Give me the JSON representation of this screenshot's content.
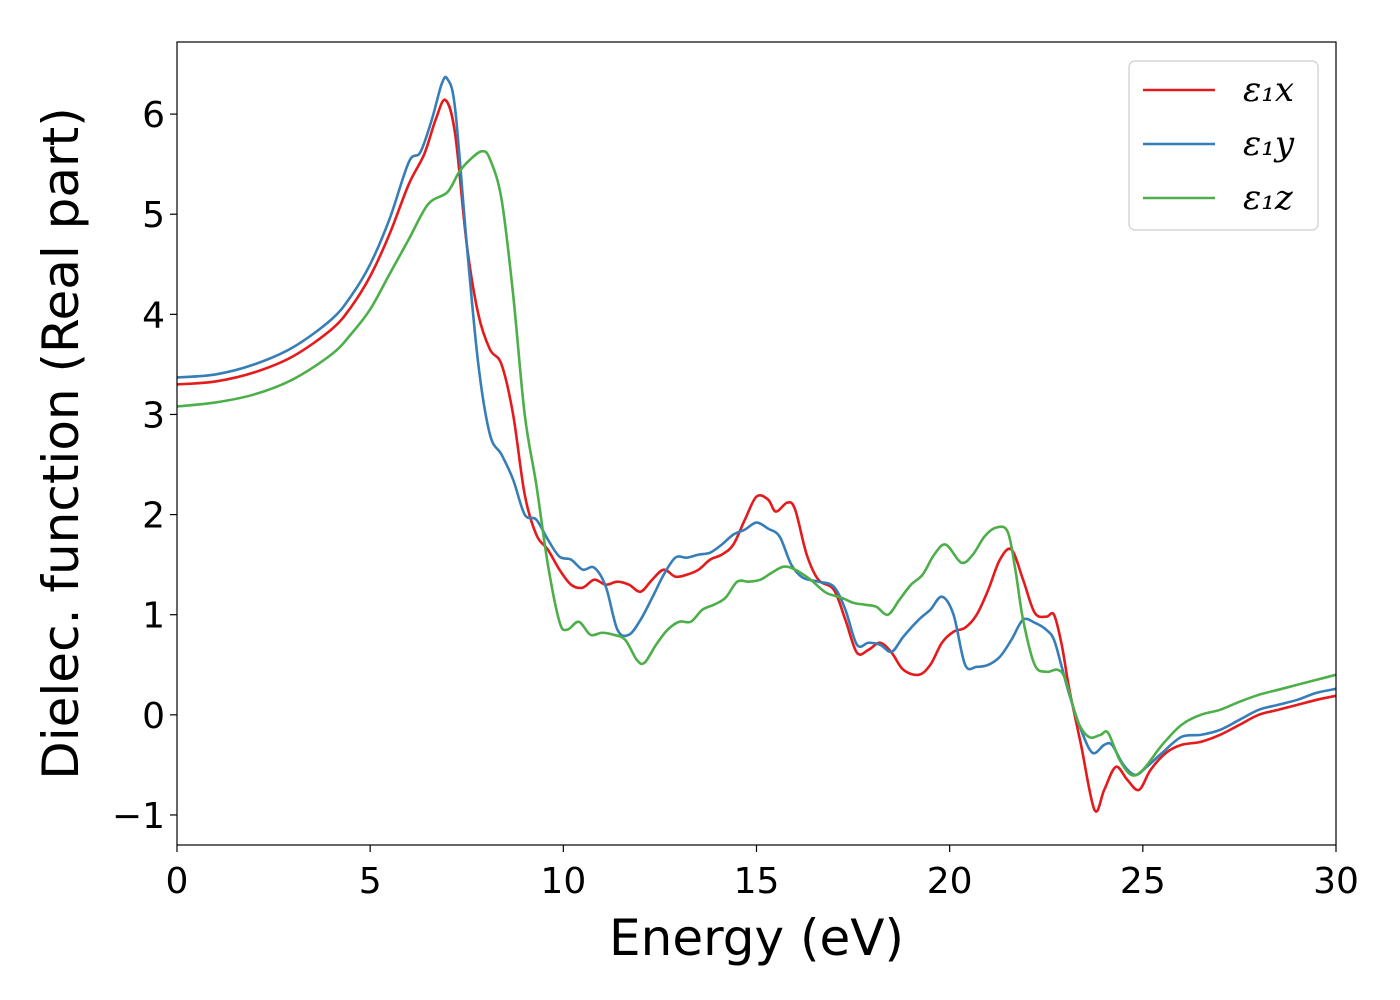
{
  "chart_data": {
    "type": "line",
    "xlabel": "Energy (eV)",
    "ylabel": "Dielec. function (Real part)",
    "xlim": [
      0,
      30
    ],
    "ylim": [
      -1.3,
      6.72
    ],
    "xticks": [
      0,
      5,
      10,
      15,
      20,
      25,
      30
    ],
    "xtick_labels": [
      "0",
      "5",
      "10",
      "15",
      "20",
      "25",
      "30"
    ],
    "yticks": [
      -1,
      0,
      1,
      2,
      3,
      4,
      5,
      6
    ],
    "ytick_labels": [
      "−1",
      "0",
      "1",
      "2",
      "3",
      "4",
      "5",
      "6"
    ],
    "grid": false,
    "legend_position": "top-right",
    "series": [
      {
        "name": "ε₁x",
        "color": "#e41a1c",
        "points": [
          [
            0,
            3.3
          ],
          [
            1,
            3.33
          ],
          [
            2,
            3.42
          ],
          [
            3,
            3.58
          ],
          [
            4,
            3.85
          ],
          [
            4.5,
            4.07
          ],
          [
            5,
            4.38
          ],
          [
            5.5,
            4.8
          ],
          [
            6,
            5.3
          ],
          [
            6.4,
            5.6
          ],
          [
            6.7,
            5.95
          ],
          [
            6.95,
            6.14
          ],
          [
            7.2,
            5.8
          ],
          [
            7.5,
            4.7
          ],
          [
            7.8,
            4.0
          ],
          [
            8.1,
            3.65
          ],
          [
            8.4,
            3.5
          ],
          [
            8.7,
            3.0
          ],
          [
            9.0,
            2.2
          ],
          [
            9.3,
            1.8
          ],
          [
            9.6,
            1.65
          ],
          [
            9.9,
            1.45
          ],
          [
            10.2,
            1.3
          ],
          [
            10.5,
            1.27
          ],
          [
            10.8,
            1.35
          ],
          [
            11.1,
            1.3
          ],
          [
            11.4,
            1.33
          ],
          [
            11.7,
            1.3
          ],
          [
            12.0,
            1.23
          ],
          [
            12.3,
            1.35
          ],
          [
            12.6,
            1.45
          ],
          [
            12.9,
            1.38
          ],
          [
            13.2,
            1.4
          ],
          [
            13.5,
            1.45
          ],
          [
            13.8,
            1.55
          ],
          [
            14.1,
            1.6
          ],
          [
            14.4,
            1.7
          ],
          [
            14.7,
            1.95
          ],
          [
            15.0,
            2.18
          ],
          [
            15.3,
            2.15
          ],
          [
            15.5,
            2.03
          ],
          [
            15.8,
            2.12
          ],
          [
            16.0,
            2.05
          ],
          [
            16.3,
            1.6
          ],
          [
            16.6,
            1.35
          ],
          [
            17.0,
            1.25
          ],
          [
            17.3,
            0.95
          ],
          [
            17.6,
            0.62
          ],
          [
            17.9,
            0.65
          ],
          [
            18.2,
            0.72
          ],
          [
            18.5,
            0.62
          ],
          [
            18.8,
            0.45
          ],
          [
            19.2,
            0.4
          ],
          [
            19.5,
            0.5
          ],
          [
            19.8,
            0.72
          ],
          [
            20.1,
            0.83
          ],
          [
            20.4,
            0.87
          ],
          [
            20.7,
            1.0
          ],
          [
            21.0,
            1.25
          ],
          [
            21.3,
            1.55
          ],
          [
            21.6,
            1.65
          ],
          [
            21.9,
            1.35
          ],
          [
            22.2,
            1.02
          ],
          [
            22.5,
            0.98
          ],
          [
            22.7,
            1.0
          ],
          [
            22.9,
            0.7
          ],
          [
            23.1,
            0.25
          ],
          [
            23.4,
            -0.3
          ],
          [
            23.75,
            -0.95
          ],
          [
            24.0,
            -0.75
          ],
          [
            24.3,
            -0.52
          ],
          [
            24.6,
            -0.65
          ],
          [
            24.9,
            -0.75
          ],
          [
            25.2,
            -0.55
          ],
          [
            25.6,
            -0.38
          ],
          [
            26.0,
            -0.3
          ],
          [
            26.5,
            -0.27
          ],
          [
            27.0,
            -0.2
          ],
          [
            27.5,
            -0.1
          ],
          [
            28.0,
            0.0
          ],
          [
            28.5,
            0.05
          ],
          [
            29.0,
            0.1
          ],
          [
            29.5,
            0.15
          ],
          [
            30.0,
            0.19
          ]
        ]
      },
      {
        "name": "ε₁y",
        "color": "#377eb8",
        "points": [
          [
            0,
            3.37
          ],
          [
            1,
            3.4
          ],
          [
            2,
            3.5
          ],
          [
            3,
            3.67
          ],
          [
            4,
            3.95
          ],
          [
            4.5,
            4.18
          ],
          [
            5,
            4.5
          ],
          [
            5.5,
            4.95
          ],
          [
            6,
            5.52
          ],
          [
            6.3,
            5.62
          ],
          [
            6.6,
            5.95
          ],
          [
            6.85,
            6.3
          ],
          [
            7.0,
            6.35
          ],
          [
            7.2,
            6.05
          ],
          [
            7.5,
            4.7
          ],
          [
            7.8,
            3.5
          ],
          [
            8.1,
            2.8
          ],
          [
            8.4,
            2.6
          ],
          [
            8.7,
            2.35
          ],
          [
            9.0,
            2.0
          ],
          [
            9.3,
            1.95
          ],
          [
            9.6,
            1.75
          ],
          [
            9.9,
            1.58
          ],
          [
            10.2,
            1.55
          ],
          [
            10.5,
            1.45
          ],
          [
            10.8,
            1.47
          ],
          [
            11.1,
            1.28
          ],
          [
            11.4,
            0.85
          ],
          [
            11.7,
            0.8
          ],
          [
            12.0,
            0.95
          ],
          [
            12.3,
            1.17
          ],
          [
            12.6,
            1.4
          ],
          [
            12.9,
            1.57
          ],
          [
            13.2,
            1.57
          ],
          [
            13.5,
            1.6
          ],
          [
            13.8,
            1.62
          ],
          [
            14.1,
            1.7
          ],
          [
            14.4,
            1.8
          ],
          [
            14.7,
            1.85
          ],
          [
            15.0,
            1.92
          ],
          [
            15.3,
            1.86
          ],
          [
            15.6,
            1.78
          ],
          [
            15.9,
            1.5
          ],
          [
            16.2,
            1.37
          ],
          [
            16.6,
            1.33
          ],
          [
            17.0,
            1.28
          ],
          [
            17.3,
            1.05
          ],
          [
            17.6,
            0.7
          ],
          [
            17.9,
            0.72
          ],
          [
            18.2,
            0.7
          ],
          [
            18.5,
            0.63
          ],
          [
            18.8,
            0.78
          ],
          [
            19.2,
            0.95
          ],
          [
            19.5,
            1.05
          ],
          [
            19.8,
            1.18
          ],
          [
            20.1,
            1.0
          ],
          [
            20.4,
            0.5
          ],
          [
            20.7,
            0.48
          ],
          [
            21.0,
            0.5
          ],
          [
            21.3,
            0.58
          ],
          [
            21.6,
            0.75
          ],
          [
            21.9,
            0.95
          ],
          [
            22.2,
            0.92
          ],
          [
            22.5,
            0.85
          ],
          [
            22.7,
            0.75
          ],
          [
            22.9,
            0.48
          ],
          [
            23.1,
            0.2
          ],
          [
            23.4,
            -0.15
          ],
          [
            23.7,
            -0.38
          ],
          [
            24.0,
            -0.3
          ],
          [
            24.2,
            -0.3
          ],
          [
            24.5,
            -0.5
          ],
          [
            24.8,
            -0.6
          ],
          [
            25.1,
            -0.52
          ],
          [
            25.5,
            -0.38
          ],
          [
            26.0,
            -0.22
          ],
          [
            26.5,
            -0.2
          ],
          [
            27.0,
            -0.15
          ],
          [
            27.5,
            -0.05
          ],
          [
            28.0,
            0.05
          ],
          [
            28.5,
            0.1
          ],
          [
            29.0,
            0.15
          ],
          [
            29.5,
            0.22
          ],
          [
            30.0,
            0.26
          ]
        ]
      },
      {
        "name": "ε₁z",
        "color": "#4daf4a",
        "points": [
          [
            0,
            3.08
          ],
          [
            1,
            3.12
          ],
          [
            2,
            3.2
          ],
          [
            3,
            3.35
          ],
          [
            4,
            3.6
          ],
          [
            4.5,
            3.8
          ],
          [
            5,
            4.05
          ],
          [
            5.5,
            4.4
          ],
          [
            6,
            4.75
          ],
          [
            6.5,
            5.1
          ],
          [
            7.0,
            5.22
          ],
          [
            7.3,
            5.42
          ],
          [
            7.6,
            5.55
          ],
          [
            7.9,
            5.63
          ],
          [
            8.1,
            5.55
          ],
          [
            8.4,
            5.15
          ],
          [
            8.7,
            4.2
          ],
          [
            9.0,
            3.0
          ],
          [
            9.3,
            2.3
          ],
          [
            9.6,
            1.5
          ],
          [
            9.9,
            0.93
          ],
          [
            10.1,
            0.85
          ],
          [
            10.4,
            0.93
          ],
          [
            10.7,
            0.8
          ],
          [
            11.0,
            0.82
          ],
          [
            11.3,
            0.8
          ],
          [
            11.6,
            0.75
          ],
          [
            11.9,
            0.55
          ],
          [
            12.1,
            0.52
          ],
          [
            12.4,
            0.7
          ],
          [
            12.7,
            0.85
          ],
          [
            13.0,
            0.93
          ],
          [
            13.3,
            0.93
          ],
          [
            13.6,
            1.05
          ],
          [
            13.9,
            1.1
          ],
          [
            14.2,
            1.17
          ],
          [
            14.5,
            1.33
          ],
          [
            14.8,
            1.33
          ],
          [
            15.1,
            1.35
          ],
          [
            15.4,
            1.42
          ],
          [
            15.7,
            1.48
          ],
          [
            16.0,
            1.45
          ],
          [
            16.4,
            1.35
          ],
          [
            16.8,
            1.22
          ],
          [
            17.2,
            1.17
          ],
          [
            17.5,
            1.12
          ],
          [
            17.8,
            1.1
          ],
          [
            18.1,
            1.08
          ],
          [
            18.4,
            1.0
          ],
          [
            18.7,
            1.15
          ],
          [
            19.0,
            1.3
          ],
          [
            19.3,
            1.4
          ],
          [
            19.6,
            1.6
          ],
          [
            19.9,
            1.7
          ],
          [
            20.3,
            1.52
          ],
          [
            20.6,
            1.6
          ],
          [
            20.9,
            1.78
          ],
          [
            21.2,
            1.87
          ],
          [
            21.5,
            1.83
          ],
          [
            21.7,
            1.45
          ],
          [
            21.9,
            0.95
          ],
          [
            22.2,
            0.5
          ],
          [
            22.5,
            0.43
          ],
          [
            22.8,
            0.45
          ],
          [
            23.0,
            0.35
          ],
          [
            23.3,
            -0.05
          ],
          [
            23.6,
            -0.22
          ],
          [
            23.9,
            -0.2
          ],
          [
            24.1,
            -0.18
          ],
          [
            24.4,
            -0.45
          ],
          [
            24.7,
            -0.6
          ],
          [
            25.0,
            -0.55
          ],
          [
            25.5,
            -0.3
          ],
          [
            26.0,
            -0.1
          ],
          [
            26.5,
            0.0
          ],
          [
            27.0,
            0.05
          ],
          [
            27.5,
            0.13
          ],
          [
            28.0,
            0.2
          ],
          [
            28.5,
            0.25
          ],
          [
            29.0,
            0.3
          ],
          [
            29.5,
            0.35
          ],
          [
            30.0,
            0.4
          ]
        ]
      }
    ]
  }
}
